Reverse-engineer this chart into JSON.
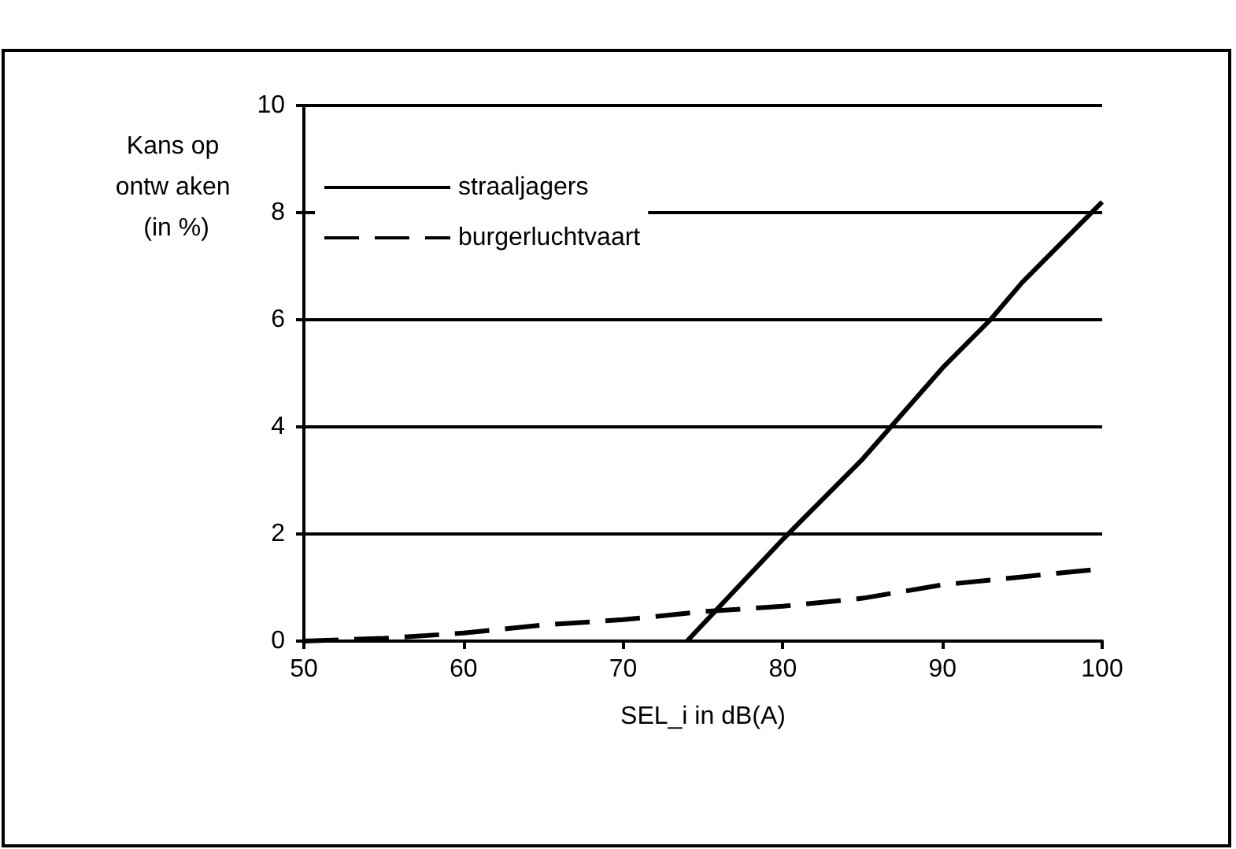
{
  "chart_data": {
    "type": "line",
    "xlabel": "SEL_i in dB(A)",
    "ylabel": "Kans op ontw aken (in %)",
    "xlim": [
      50,
      100
    ],
    "xticks": [
      50,
      60,
      70,
      80,
      90,
      100
    ],
    "ylim": [
      0,
      10
    ],
    "yticks": [
      0,
      2,
      4,
      6,
      8,
      10
    ],
    "grid": "y",
    "legend": "top left",
    "marker": "none",
    "series": [
      {
        "name": "straaljagers",
        "color": "#000000",
        "line_style": "solid",
        "x": [
          74,
          80,
          85,
          90,
          93,
          95,
          100
        ],
        "values": [
          0,
          1.9,
          3.4,
          5.1,
          6,
          6.7,
          8.2
        ]
      },
      {
        "name": "burgerluchtvaart",
        "color": "#000000",
        "line_style": "dashed",
        "x": [
          50,
          55,
          60,
          65,
          70,
          75,
          80,
          85,
          90,
          95,
          100
        ],
        "values": [
          0,
          0.05,
          0.15,
          0.3,
          0.4,
          0.55,
          0.65,
          0.8,
          1.05,
          1.2,
          1.35
        ]
      }
    ]
  }
}
